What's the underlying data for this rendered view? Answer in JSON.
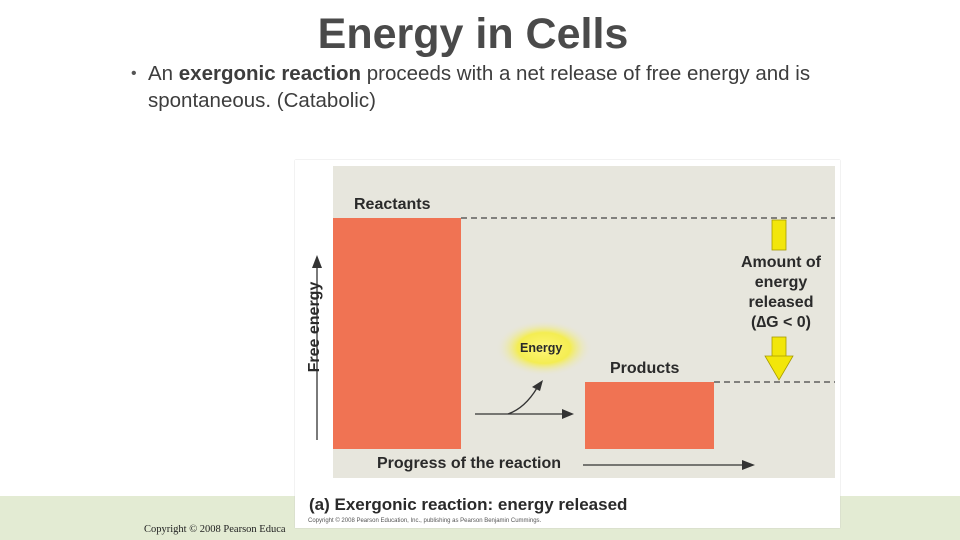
{
  "slide": {
    "title": "Energy in Cells",
    "bullet": {
      "prefix": "An ",
      "emphasis": "exergonic reaction",
      "suffix": " proceeds with a net release of free energy and is spontaneous. (Catabolic)"
    },
    "copyright": "Copyright © 2008 Pearson Educa"
  },
  "figure": {
    "reactants_label": "Reactants",
    "products_label": "Products",
    "energy_label": "Energy",
    "amount_label_lines": [
      "Amount of",
      "energy",
      "released",
      "(∆G < 0)"
    ],
    "y_axis_label": "Free energy",
    "x_axis_label": "Progress of the reaction",
    "caption": "(a) Exergonic reaction: energy released",
    "small_copyright": "Copyright © 2008 Pearson Education, Inc., publishing as Pearson Benjamin Cummings.",
    "colors": {
      "bar": "#f07353",
      "background": "#e7e6dd",
      "arrow_yellow": "#f2e60a",
      "glow": "#f6ee3a"
    }
  }
}
